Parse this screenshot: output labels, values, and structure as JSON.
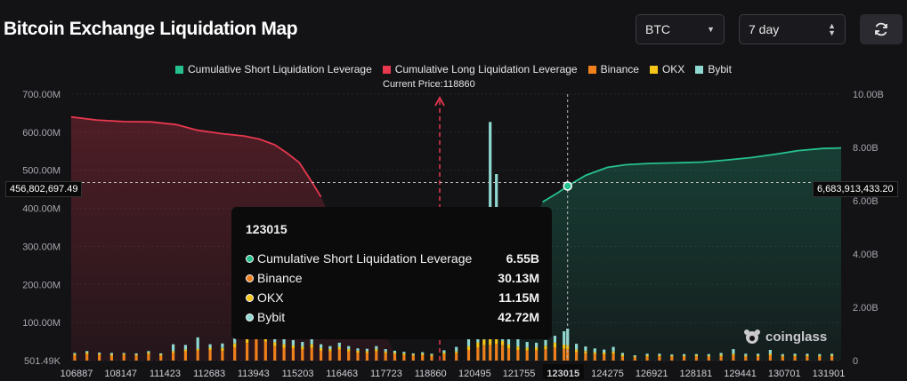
{
  "header": {
    "title": "Bitcoin Exchange Liquidation Map",
    "symbol_select": "BTC",
    "range_select": "7 day"
  },
  "legend": [
    {
      "label": "Cumulative Short Liquidation Leverage",
      "color": "#26c08f"
    },
    {
      "label": "Cumulative Long Liquidation Leverage",
      "color": "#e8384f"
    },
    {
      "label": "Binance",
      "color": "#f0801b"
    },
    {
      "label": "OKX",
      "color": "#f5c518"
    },
    {
      "label": "Bybit",
      "color": "#8fd9d1"
    }
  ],
  "current_price_label": "Current Price:118860",
  "crosshair": {
    "left_value": "456,802,697.49",
    "right_value": "6,683,913,433.20"
  },
  "tooltip": {
    "header": "123015",
    "rows": [
      {
        "label": "Cumulative Short Liquidation Leverage",
        "value": "6.55B",
        "color": "#26c08f"
      },
      {
        "label": "Binance",
        "value": "30.13M",
        "color": "#f0801b"
      },
      {
        "label": "OKX",
        "value": "11.15M",
        "color": "#f5c518"
      },
      {
        "label": "Bybit",
        "value": "42.72M",
        "color": "#8fd9d1"
      }
    ]
  },
  "watermark": "coinglass",
  "chart_data": {
    "type": "bar",
    "x_ticks": [
      "106887",
      "108147",
      "111423",
      "112683",
      "113943",
      "115203",
      "116463",
      "117723",
      "118860",
      "120495",
      "121755",
      "123015",
      "124275",
      "126921",
      "128181",
      "129441",
      "130701",
      "131901"
    ],
    "x_range": [
      106887,
      131901
    ],
    "current_price": 118860,
    "hover_price": 123015,
    "y_left": {
      "ticks": [
        "501.49K",
        "100.00M",
        "200.00M",
        "300.00M",
        "400.00M",
        "500.00M",
        "600.00M",
        "700.00M"
      ],
      "range": [
        0,
        700000000
      ]
    },
    "y_right": {
      "ticks": [
        "0",
        "2.00B",
        "4.00B",
        "6.00B",
        "8.00B",
        "10.00B"
      ],
      "range": [
        0,
        10000000000
      ]
    },
    "series": [
      {
        "name": "Cumulative Long Liquidation Leverage",
        "axis": "left",
        "points": [
          [
            106887,
            640000000
          ],
          [
            107700,
            632000000
          ],
          [
            108600,
            628000000
          ],
          [
            109500,
            627000000
          ],
          [
            110300,
            620000000
          ],
          [
            111000,
            605000000
          ],
          [
            111800,
            596000000
          ],
          [
            112500,
            590000000
          ],
          [
            113000,
            582000000
          ],
          [
            113500,
            567000000
          ],
          [
            113900,
            545000000
          ],
          [
            114300,
            520000000
          ],
          [
            114700,
            470000000
          ],
          [
            115000,
            430000000
          ]
        ]
      },
      {
        "name": "Cumulative Short Liquidation Leverage",
        "axis": "right",
        "points": [
          [
            122200,
            5950000000
          ],
          [
            122700,
            6300000000
          ],
          [
            123015,
            6550000000
          ],
          [
            123600,
            6950000000
          ],
          [
            124300,
            7250000000
          ],
          [
            124900,
            7350000000
          ],
          [
            125700,
            7400000000
          ],
          [
            126500,
            7420000000
          ],
          [
            127400,
            7450000000
          ],
          [
            128200,
            7530000000
          ],
          [
            129000,
            7620000000
          ],
          [
            129800,
            7750000000
          ],
          [
            130500,
            7880000000
          ],
          [
            131300,
            7960000000
          ],
          [
            131901,
            7980000000
          ]
        ]
      }
    ],
    "bars": {
      "note": "stacked per price level: Binance, OKX, Bybit (values in USD)",
      "x": [
        107000,
        107400,
        107800,
        108200,
        108600,
        109000,
        109400,
        109800,
        110200,
        110600,
        111000,
        111400,
        111800,
        112200,
        112600,
        112900,
        113200,
        113500,
        113800,
        114100,
        114400,
        114700,
        115000,
        115300,
        115600,
        115900,
        116200,
        116500,
        116800,
        117100,
        117400,
        117700,
        118000,
        118300,
        118600,
        119000,
        119400,
        119800,
        120100,
        120300,
        120500,
        120700,
        120900,
        121100,
        121400,
        121700,
        122000,
        122300,
        122600,
        122900,
        123015,
        123300,
        123600,
        123900,
        124200,
        124500,
        124800,
        125200,
        125600,
        126000,
        126400,
        126800,
        127200,
        127600,
        128000,
        128400,
        128800,
        129200,
        129600,
        130000,
        130400,
        130800,
        131200,
        131600
      ],
      "binance": [
        14000000,
        17000000,
        15000000,
        12000000,
        15000000,
        13000000,
        17000000,
        13000000,
        20000000,
        24000000,
        26000000,
        28000000,
        25000000,
        35000000,
        46000000,
        60000000,
        50000000,
        38000000,
        34000000,
        32000000,
        29000000,
        34000000,
        26000000,
        24000000,
        29000000,
        24000000,
        21000000,
        20000000,
        24000000,
        19000000,
        17000000,
        15000000,
        13000000,
        14000000,
        12000000,
        17000000,
        19000000,
        28000000,
        34000000,
        40000000,
        42000000,
        44000000,
        40000000,
        32000000,
        28000000,
        26000000,
        27000000,
        30000000,
        35000000,
        31000000,
        30130000,
        22000000,
        19000000,
        17000000,
        16000000,
        18000000,
        11000000,
        8000000,
        10000000,
        11000000,
        10000000,
        10000000,
        11000000,
        10000000,
        11000000,
        14000000,
        10000000,
        11000000,
        14000000,
        10000000,
        11000000,
        11000000,
        10000000,
        11000000
      ],
      "okx": [
        3000000,
        4000000,
        3000000,
        4000000,
        3000000,
        3000000,
        4000000,
        3000000,
        5000000,
        5000000,
        5000000,
        6000000,
        8000000,
        10000000,
        12000000,
        20000000,
        14000000,
        10000000,
        9000000,
        8000000,
        8000000,
        9000000,
        7000000,
        6000000,
        7000000,
        6000000,
        5000000,
        5000000,
        6000000,
        5000000,
        4000000,
        4000000,
        3000000,
        4000000,
        3000000,
        4000000,
        5000000,
        10000000,
        14000000,
        15000000,
        15000000,
        16000000,
        12000000,
        10000000,
        9000000,
        8000000,
        8000000,
        9000000,
        12000000,
        11000000,
        11150000,
        7000000,
        6000000,
        5000000,
        5000000,
        6000000,
        4000000,
        3000000,
        4000000,
        3000000,
        3000000,
        3000000,
        3000000,
        3000000,
        4000000,
        4000000,
        3000000,
        3000000,
        4000000,
        3000000,
        3000000,
        3000000,
        3000000,
        3000000
      ],
      "bybit": [
        3000000,
        4000000,
        3000000,
        4000000,
        2000000,
        3000000,
        4000000,
        3000000,
        18000000,
        12000000,
        30000000,
        9000000,
        12000000,
        46000000,
        65000000,
        90000000,
        55000000,
        22000000,
        18000000,
        14000000,
        12000000,
        14000000,
        10000000,
        8000000,
        11000000,
        8000000,
        6000000,
        6000000,
        8000000,
        6000000,
        5000000,
        4000000,
        3000000,
        4000000,
        3000000,
        6000000,
        12000000,
        30000000,
        160000000,
        280000000,
        570000000,
        430000000,
        170000000,
        40000000,
        20000000,
        15000000,
        12000000,
        15000000,
        18000000,
        35000000,
        42720000,
        15000000,
        12000000,
        10000000,
        8000000,
        12000000,
        5000000,
        3000000,
        4000000,
        4000000,
        3000000,
        4000000,
        3000000,
        4000000,
        5000000,
        12000000,
        5000000,
        4000000,
        10000000,
        4000000,
        4000000,
        4000000,
        4000000,
        4000000
      ]
    }
  }
}
